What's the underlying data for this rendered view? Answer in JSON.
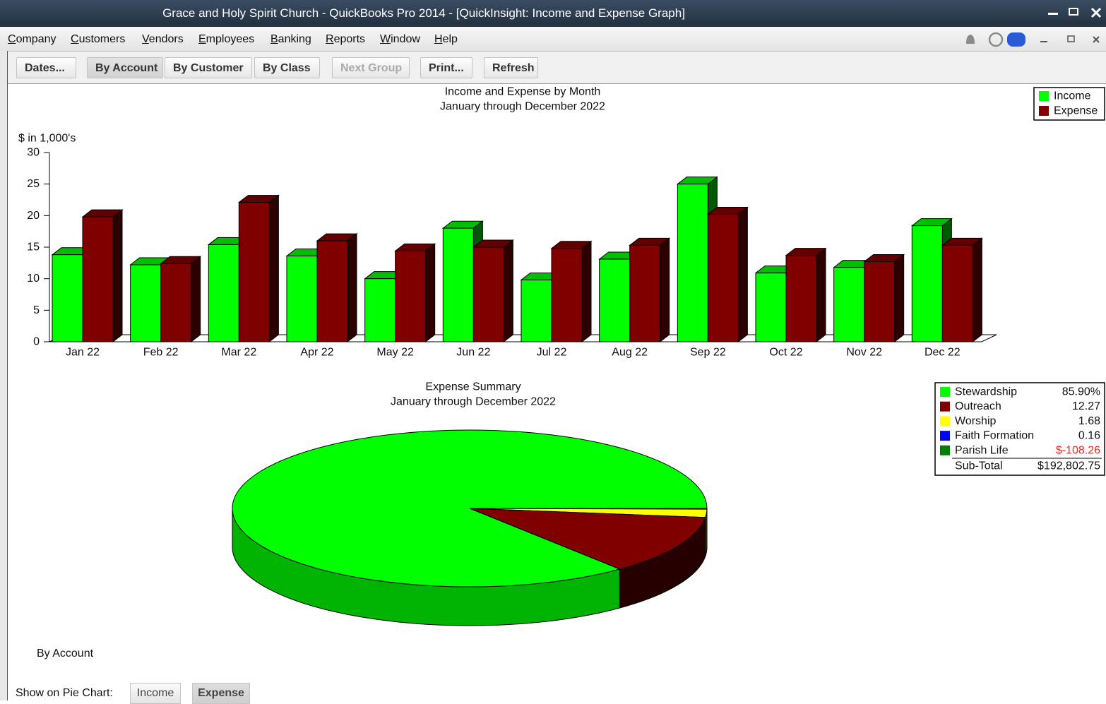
{
  "window": {
    "title": "Grace and Holy Spirit Church  - QuickBooks Pro 2014 - [QuickInsight: Income and Expense Graph]"
  },
  "menu": [
    "Company",
    "Customers",
    "Vendors",
    "Employees",
    "Banking",
    "Reports",
    "Window",
    "Help"
  ],
  "toolbar": [
    "Dates...",
    "By Account",
    "By Customer",
    "By Class",
    "Next Group",
    "Print...",
    "Refresh"
  ],
  "chart_data": [
    {
      "type": "bar",
      "title": "Income and Expense by Month",
      "subtitle": "January through December 2022",
      "y_label": "$ in 1,000's",
      "categories": [
        "Jan 22",
        "Feb 22",
        "Mar 22",
        "Apr 22",
        "May 22",
        "Jun 22",
        "Jul 22",
        "Aug 22",
        "Sep 22",
        "Oct 22",
        "Nov 22",
        "Dec 22"
      ],
      "series": [
        {
          "name": "Income",
          "color": "#00ff00",
          "values": [
            13.8,
            12.2,
            15.4,
            13.6,
            10.0,
            18.0,
            9.8,
            13.1,
            25.0,
            10.9,
            11.8,
            18.4
          ]
        },
        {
          "name": "Expense",
          "color": "#800000",
          "values": [
            19.8,
            12.4,
            22.1,
            16.0,
            14.4,
            15.0,
            14.8,
            15.3,
            20.2,
            13.7,
            12.7,
            15.3
          ]
        }
      ],
      "ylim": [
        0,
        30
      ],
      "yticks": [
        0,
        5,
        10,
        15,
        20,
        25,
        30
      ],
      "legend": "top-right"
    },
    {
      "type": "pie",
      "title": "Expense Summary",
      "subtitle": "January through December 2022",
      "categories": [
        "Stewardship",
        "Outreach",
        "Worship",
        "Faith Formation",
        "Parish Life"
      ],
      "values": [
        85.9,
        12.27,
        1.68,
        0.16,
        -108.26
      ],
      "value_labels": [
        "85.90%",
        "12.27",
        "1.68",
        "0.16",
        "$-108.26"
      ],
      "colors": [
        "#00ff00",
        "#800000",
        "#ffff00",
        "#0000ff",
        "#008000"
      ],
      "subtotal_label": "Sub-Total",
      "subtotal": "$192,802.75"
    }
  ],
  "footer": {
    "group_label": "By Account",
    "show_label": "Show on Pie Chart:",
    "buttons": [
      "Income",
      "Expense"
    ]
  }
}
